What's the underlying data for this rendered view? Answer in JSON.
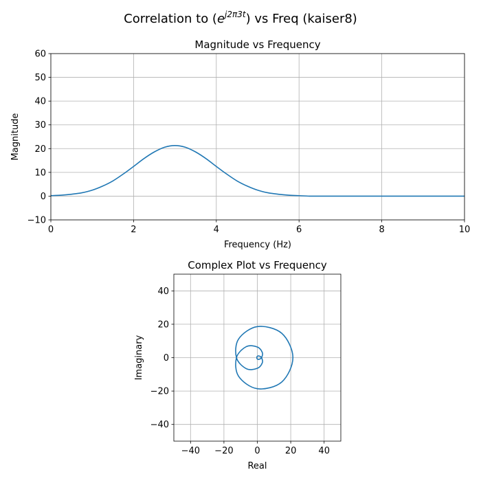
{
  "figure": {
    "title_prefix": "Correlation to (",
    "title_base": "e",
    "title_exponent": "j2π3t",
    "title_suffix": ") vs Freq (kaiser8)"
  },
  "chart_data": [
    {
      "type": "line",
      "title": "Magnitude vs Frequency",
      "xlabel": "Frequency (Hz)",
      "ylabel": "Magnitude",
      "xlim": [
        0,
        10
      ],
      "ylim": [
        -10,
        60
      ],
      "xticks": [
        0,
        2,
        4,
        6,
        8,
        10
      ],
      "yticks": [
        -10,
        0,
        10,
        20,
        30,
        40,
        50,
        60
      ],
      "grid": true,
      "color": "#1f77b4",
      "x": [
        0,
        0.25,
        0.5,
        0.75,
        1,
        1.25,
        1.5,
        1.75,
        2,
        2.25,
        2.5,
        2.75,
        3,
        3.25,
        3.5,
        3.75,
        4,
        4.25,
        4.5,
        4.75,
        5,
        5.25,
        5.5,
        5.75,
        6,
        6.25,
        6.5,
        6.75,
        7,
        7.25,
        7.5,
        7.75,
        8,
        8.25,
        8.5,
        8.75,
        9,
        9.25,
        9.5,
        9.75,
        10
      ],
      "y": [
        0.2,
        0.4,
        0.8,
        1.4,
        2.5,
        4.2,
        6.4,
        9.3,
        12.5,
        15.8,
        18.6,
        20.6,
        21.3,
        20.6,
        18.6,
        15.8,
        12.5,
        9.3,
        6.4,
        4.2,
        2.5,
        1.4,
        0.8,
        0.4,
        0.2,
        0,
        0,
        0,
        0,
        0,
        0,
        0,
        0,
        0,
        0,
        0,
        0,
        0,
        0,
        0,
        0
      ]
    },
    {
      "type": "line",
      "title": "Complex Plot vs Frequency",
      "xlabel": "Real",
      "ylabel": "Imaginary",
      "xlim": [
        -50,
        50
      ],
      "ylim": [
        -50,
        50
      ],
      "xticks": [
        -40,
        -20,
        0,
        20,
        40
      ],
      "yticks": [
        -40,
        -20,
        0,
        20,
        40
      ],
      "grid": true,
      "color": "#1f77b4",
      "x": [
        -0.2,
        -0.3,
        0,
        1.0,
        2.5,
        3.0,
        0,
        -6.6,
        -12.5,
        -11.2,
        0,
        14.6,
        21.3,
        14.6,
        0,
        -11.2,
        -12.5,
        -6.6,
        0,
        3.0,
        2.5,
        1.0,
        0,
        -0.3,
        -0.2,
        0
      ],
      "y": [
        0,
        -0.3,
        -0.8,
        -1.0,
        0,
        3.0,
        6.4,
        6.6,
        0,
        -11.2,
        -18.6,
        -14.6,
        0,
        14.6,
        18.6,
        11.2,
        0,
        -6.6,
        -6.4,
        -3.0,
        0,
        1.0,
        0.8,
        0.3,
        0,
        0
      ]
    }
  ]
}
